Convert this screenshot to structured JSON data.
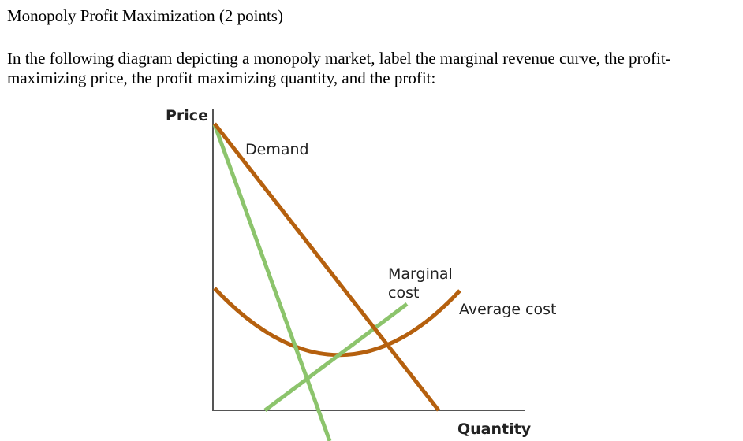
{
  "document": {
    "title": "Monopoly Profit Maximization (2 points)",
    "question": "In the following diagram depicting a monopoly market, label the marginal revenue curve, the profit-maximizing price, the profit maximizing quantity, and the profit:"
  },
  "diagram": {
    "y_axis_label": "Price",
    "x_axis_label": "Quantity",
    "curves": {
      "demand_label": "Demand",
      "marginal_cost_label_line1": "Marginal",
      "marginal_cost_label_line2": "cost",
      "average_cost_label": "Average cost",
      "marginal_revenue_label": ""
    },
    "colors": {
      "demand": "#b5600e",
      "average_cost": "#b5600e",
      "marginal_cost": "#8cc46c",
      "marginal_revenue": "#8cc46c",
      "axes": "#555555"
    }
  }
}
